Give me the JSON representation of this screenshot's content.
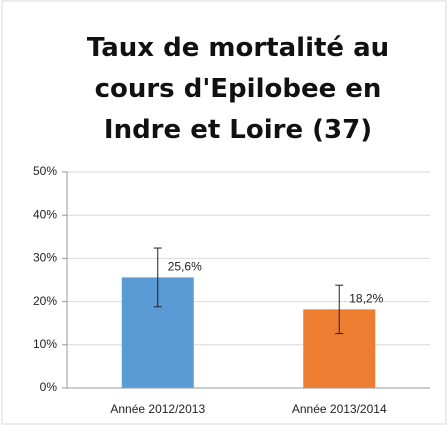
{
  "chart_data": {
    "type": "bar",
    "title": "Taux de mortalité au cours d'Epilobee en Indre et Loire (37)",
    "categories": [
      "Année 2012/2013",
      "Année 2013/2014"
    ],
    "values": [
      25.6,
      18.2
    ],
    "value_labels": [
      "25,6%",
      "18,2%"
    ],
    "errors": [
      6.8,
      5.6
    ],
    "colors": [
      "#5b9bd5",
      "#ed7d31"
    ],
    "ylim": [
      0,
      50
    ],
    "yticks": [
      {
        "value": 0,
        "label": "0%"
      },
      {
        "value": 10,
        "label": "10%"
      },
      {
        "value": 20,
        "label": "20%"
      },
      {
        "value": 30,
        "label": "30%"
      },
      {
        "value": 40,
        "label": "40%"
      },
      {
        "value": 50,
        "label": "50%"
      }
    ],
    "grid": true
  }
}
